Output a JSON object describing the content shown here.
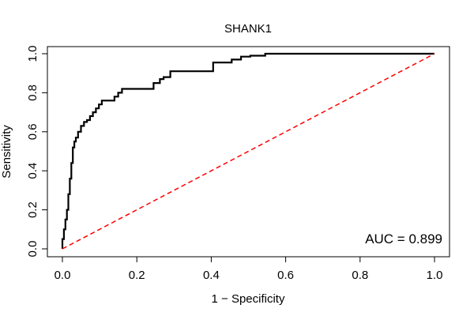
{
  "chart_data": {
    "type": "line",
    "title": "SHANK1",
    "xlabel": "1 − Specificity",
    "ylabel": "Sensitivity",
    "xlim": [
      0,
      1
    ],
    "ylim": [
      0,
      1
    ],
    "grid": false,
    "x_ticks": [
      0.0,
      0.2,
      0.4,
      0.6,
      0.8,
      1.0
    ],
    "y_ticks": [
      0.0,
      0.2,
      0.4,
      0.6,
      0.8,
      1.0
    ],
    "x_tick_labels": [
      "0.0",
      "0.2",
      "0.4",
      "0.6",
      "0.8",
      "1.0"
    ],
    "y_tick_labels": [
      "0.0",
      "0.2",
      "0.4",
      "0.6",
      "0.8",
      "1.0"
    ],
    "series": [
      {
        "style": "solid",
        "color": "#000000",
        "x": [
          0.0,
          0.0,
          0.004,
          0.004,
          0.008,
          0.008,
          0.012,
          0.012,
          0.016,
          0.016,
          0.02,
          0.02,
          0.024,
          0.024,
          0.028,
          0.028,
          0.032,
          0.032,
          0.036,
          0.036,
          0.042,
          0.042,
          0.05,
          0.05,
          0.058,
          0.058,
          0.066,
          0.066,
          0.074,
          0.074,
          0.082,
          0.082,
          0.09,
          0.09,
          0.098,
          0.098,
          0.106,
          0.106,
          0.118,
          0.118,
          0.14,
          0.14,
          0.15,
          0.15,
          0.16,
          0.16,
          0.17,
          0.17,
          0.245,
          0.245,
          0.262,
          0.262,
          0.272,
          0.272,
          0.29,
          0.29,
          0.3,
          0.3,
          0.405,
          0.405,
          0.455,
          0.455,
          0.48,
          0.48,
          0.505,
          0.505,
          0.545,
          0.545,
          1.0
        ],
        "y": [
          0.0,
          0.05,
          0.05,
          0.1,
          0.1,
          0.15,
          0.15,
          0.2,
          0.2,
          0.28,
          0.28,
          0.36,
          0.36,
          0.44,
          0.44,
          0.52,
          0.52,
          0.55,
          0.55,
          0.57,
          0.57,
          0.6,
          0.6,
          0.63,
          0.63,
          0.65,
          0.65,
          0.66,
          0.66,
          0.68,
          0.68,
          0.7,
          0.7,
          0.72,
          0.72,
          0.74,
          0.74,
          0.76,
          0.76,
          0.76,
          0.76,
          0.78,
          0.78,
          0.8,
          0.8,
          0.82,
          0.82,
          0.82,
          0.82,
          0.85,
          0.85,
          0.87,
          0.87,
          0.88,
          0.88,
          0.91,
          0.91,
          0.91,
          0.91,
          0.955,
          0.955,
          0.97,
          0.97,
          0.985,
          0.985,
          0.99,
          0.99,
          1.0,
          1.0
        ]
      },
      {
        "style": "dashed",
        "color": "#ff0000",
        "x": [
          0.0,
          1.0
        ],
        "y": [
          0.0,
          1.0
        ]
      }
    ],
    "annotations": [
      {
        "text": "AUC = 0.899",
        "position": "bottom-right"
      }
    ]
  }
}
